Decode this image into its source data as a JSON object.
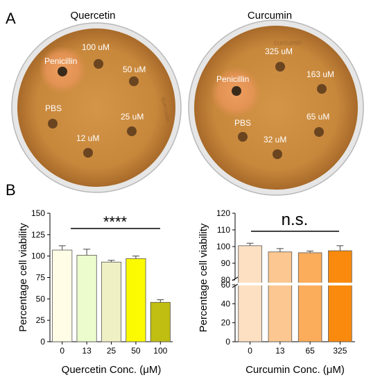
{
  "panel_a": {
    "letter": "A",
    "plates": [
      {
        "title": "Quercetin",
        "labels": [
          "Penicillin",
          "100 uM",
          "50 uM",
          "PBS",
          "25 uM",
          "12 uM"
        ],
        "handwriting": "quercetin"
      },
      {
        "title": "Curcumin",
        "labels": [
          "Penicillin",
          "325 uM",
          "163 uM",
          "PBS",
          "65 uM",
          "32 uM"
        ],
        "handwriting": "curcumin"
      }
    ]
  },
  "panel_b": {
    "letter": "B"
  },
  "colors": {
    "quercetin_bars": [
      "#fffde6",
      "#ecfccc",
      "#eff0c4",
      "#fbfa00",
      "#c0be10"
    ],
    "curcumin_bars": [
      "#fde0c2",
      "#fcc790",
      "#fbad5b",
      "#f98a0e"
    ],
    "agar": "#c8883c",
    "plate_rim": "#d4d4d4"
  },
  "chart_data": [
    {
      "type": "bar",
      "categories": [
        "0",
        "13",
        "25",
        "50",
        "100"
      ],
      "values": [
        107,
        101,
        93,
        97,
        46
      ],
      "errors": [
        5,
        7,
        2,
        3,
        3
      ],
      "ylabel": "Percentage cell viability",
      "xlabel": "Quercetin Conc. (μM)",
      "ylim": [
        0,
        150
      ],
      "yticks": [
        "0",
        "25",
        "50",
        "75",
        "100",
        "125",
        "150"
      ],
      "significance": "****"
    },
    {
      "type": "bar",
      "categories": [
        "0",
        "13",
        "65",
        "325"
      ],
      "values": [
        100.5,
        96.8,
        96.3,
        97.5
      ],
      "errors": [
        1.5,
        2.0,
        1.0,
        3.0
      ],
      "ylabel": "Percentage cell viability",
      "xlabel": "Curcumin Conc. (μM)",
      "ylim": [
        0,
        120
      ],
      "axis_break": [
        60,
        80
      ],
      "yticks_lower": [
        "0",
        "20",
        "40",
        "60"
      ],
      "yticks_upper": [
        "80",
        "90",
        "100",
        "110",
        "120"
      ],
      "significance": "n.s."
    }
  ]
}
